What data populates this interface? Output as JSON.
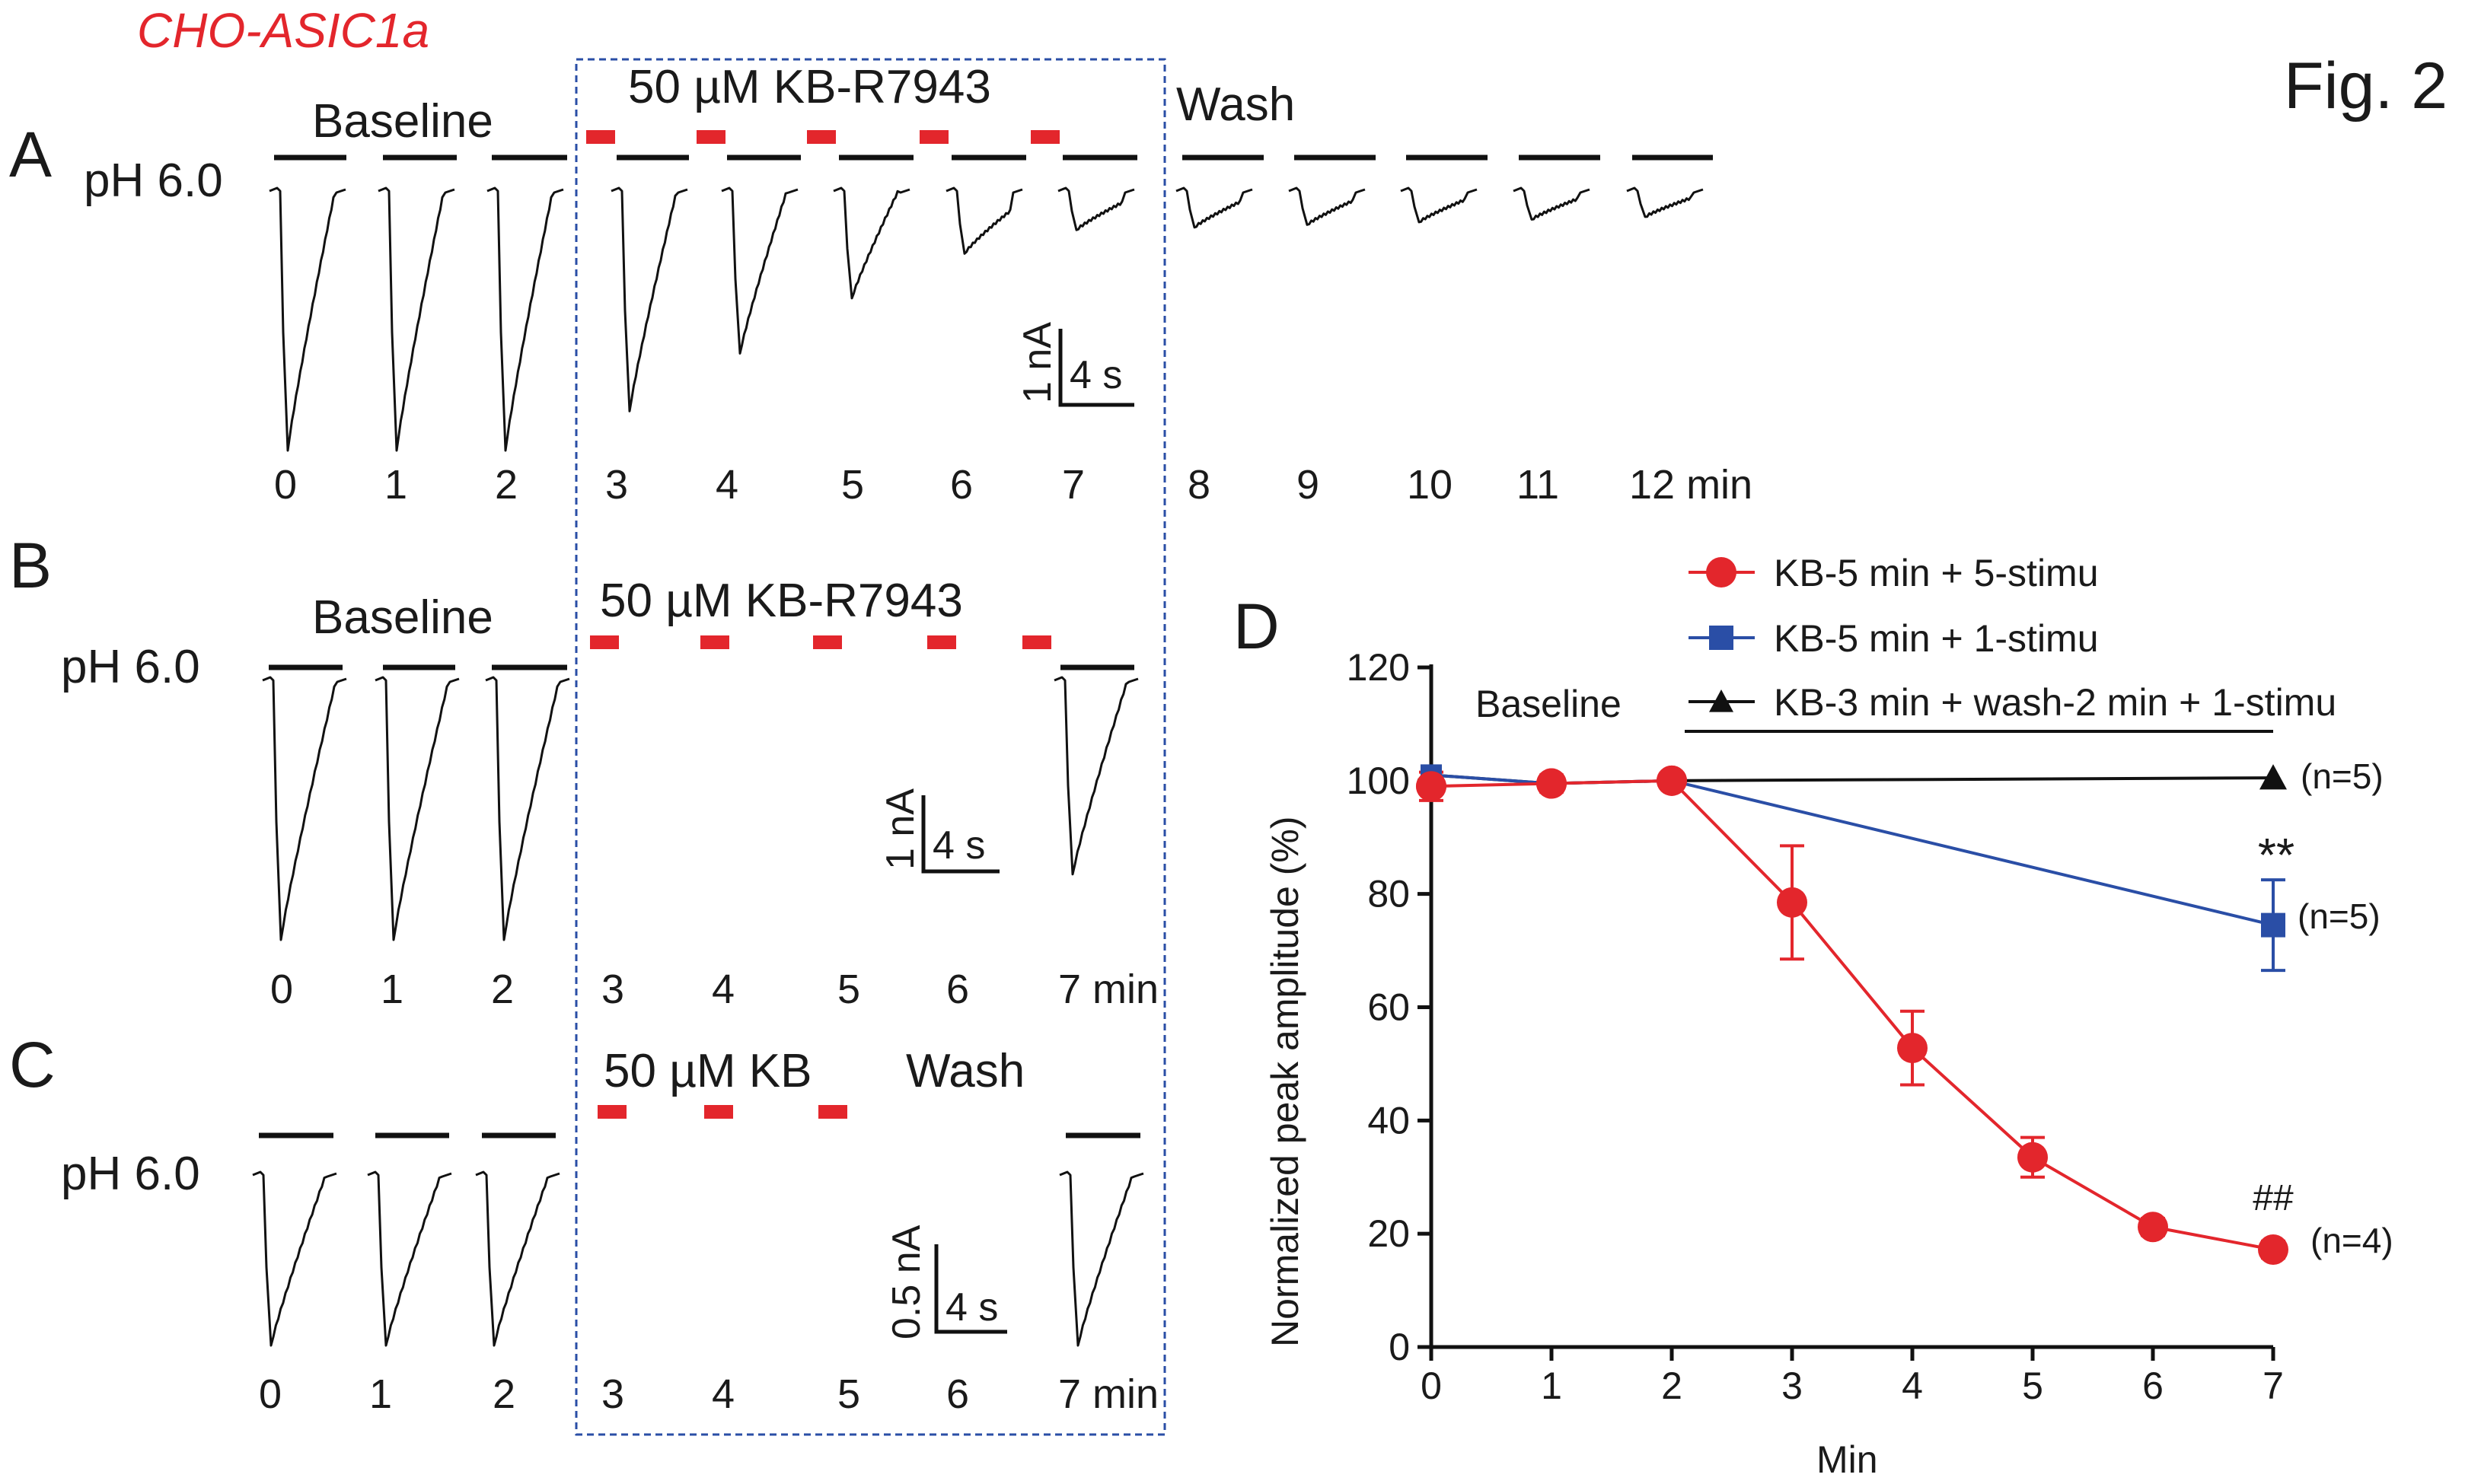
{
  "figure": {
    "fig_label": "Fig. 2",
    "cell_label": "CHO-ASIC1a",
    "colors": {
      "red": "#e3262c",
      "blue": "#2a4ea6",
      "black": "#111111",
      "box": "#2a4ea6"
    }
  },
  "panel_a": {
    "letter": "A",
    "ph_label": "pH 6.0",
    "baseline_label": "Baseline",
    "drug_label": "50 µM KB-R7943",
    "wash_label": "Wash",
    "scale": {
      "current": "1 nA",
      "time": "4 s"
    },
    "time_labels": [
      "0",
      "1",
      "2",
      "3",
      "4",
      "5",
      "6",
      "7",
      "8",
      "9",
      "10",
      "11",
      "12 min"
    ],
    "trace_depths_relative": [
      1.0,
      1.0,
      1.0,
      0.85,
      0.63,
      0.42,
      0.25,
      0.16,
      0.15,
      0.14,
      0.13,
      0.12,
      0.11
    ]
  },
  "panel_b": {
    "letter": "B",
    "ph_label": "pH 6.0",
    "baseline_label": "Baseline",
    "drug_label": "50 µM KB-R7943",
    "scale": {
      "current": "1 nA",
      "time": "4 s"
    },
    "time_labels": [
      "0",
      "1",
      "2",
      "3",
      "4",
      "5",
      "6",
      "7 min"
    ],
    "trace_depths_relative": [
      1.0,
      1.0,
      1.0,
      0.75
    ]
  },
  "panel_c": {
    "letter": "C",
    "ph_label": "pH 6.0",
    "drug_label": "50 µM KB",
    "wash_label": "Wash",
    "scale": {
      "current": "0.5 nA",
      "time": "4 s"
    },
    "time_labels": [
      "0",
      "1",
      "2",
      "3",
      "4",
      "5",
      "6",
      "7 min"
    ],
    "trace_depths_relative": [
      1.0,
      1.0,
      1.0,
      1.0
    ]
  },
  "chart_data": {
    "type": "line",
    "panel": "D",
    "xlabel": "Min",
    "ylabel": "Normalized peak amplitude (%)",
    "xlim": [
      0,
      7
    ],
    "ylim": [
      0,
      120
    ],
    "xticks": [
      "0",
      "1",
      "2",
      "3",
      "4",
      "5",
      "6",
      "7"
    ],
    "yticks": [
      "0",
      "20",
      "40",
      "60",
      "80",
      "100",
      "120"
    ],
    "baseline_annotation": "Baseline",
    "series": [
      {
        "name": "KB-5 min + 5-stimu",
        "color": "#e3262c",
        "marker": "circle",
        "x": [
          0,
          1,
          2,
          3,
          4,
          5,
          6,
          7
        ],
        "y": [
          99,
          99.5,
          100,
          78.5,
          52.8,
          33.5,
          21.2,
          17.2
        ],
        "err": [
          2.5,
          1.5,
          0,
          10,
          6.5,
          3.5,
          1.5,
          1.5
        ],
        "n_label": "(n=4)",
        "annotation": "##"
      },
      {
        "name": "KB-5 min + 1-stimu",
        "color": "#2a4ea6",
        "marker": "square",
        "x": [
          0,
          1,
          2,
          7
        ],
        "y": [
          101,
          99.5,
          100,
          74.5
        ],
        "err": [
          0,
          0,
          0,
          8
        ],
        "n_label": "(n=5)",
        "annotation": "**"
      },
      {
        "name": "KB-3 min + wash-2 min + 1-stimu",
        "color": "#111111",
        "marker": "triangle",
        "x": [
          0,
          1,
          2,
          7
        ],
        "y": [
          101,
          99.5,
          100,
          100.5
        ],
        "err": [
          0,
          0,
          0,
          0
        ],
        "n_label": "(n=5)",
        "annotation": ""
      }
    ]
  }
}
